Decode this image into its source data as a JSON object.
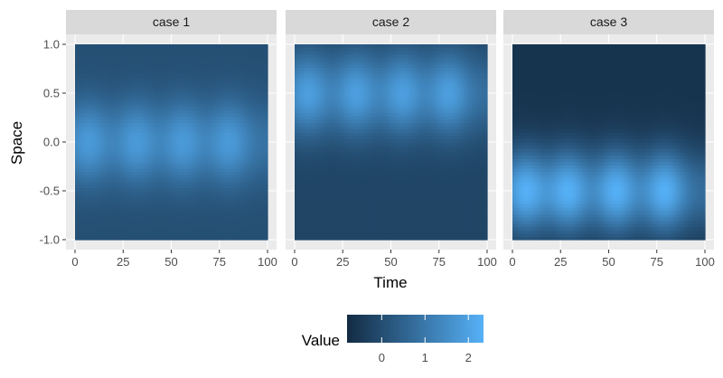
{
  "chart_data": {
    "type": "heatmap",
    "facets": [
      "case 1",
      "case 2",
      "case 3"
    ],
    "xlabel": "Time",
    "ylabel": "Space",
    "xlim": [
      0,
      100
    ],
    "ylim": [
      -1,
      1
    ],
    "x_ticks": [
      0,
      25,
      50,
      75,
      100
    ],
    "x_tick_labels": [
      "0",
      "25",
      "50",
      "75",
      "100"
    ],
    "y_ticks": [
      -1,
      -0.5,
      0,
      0.5,
      1
    ],
    "y_tick_labels": [
      "-1.0",
      "-0.5",
      "0.0",
      "0.5",
      "1.0"
    ],
    "legend": {
      "title": "Value",
      "range": [
        -0.8,
        2.35
      ],
      "breaks": [
        0,
        1,
        2
      ],
      "break_labels": [
        "0",
        "1",
        "2"
      ],
      "low_color": "#132B43",
      "high_color": "#56B1F7",
      "position": "bottom"
    },
    "cases": [
      {
        "name": "case 1",
        "bumps_y": [
          0.0
        ],
        "peak_times": [
          7,
          32,
          56,
          80
        ],
        "base": 0.05,
        "amp": 1.75,
        "sigma_y": 0.3
      },
      {
        "name": "case 2",
        "bumps_y": [
          0.5
        ],
        "peak_times": [
          7,
          32,
          56,
          80
        ],
        "base": -0.2,
        "amp": 2.1,
        "sigma_y": 0.3
      },
      {
        "name": "case 3",
        "bumps_y": [
          -0.5
        ],
        "peak_times": [
          7,
          29,
          54,
          79
        ],
        "base": -0.6,
        "amp": 2.9,
        "sigma_y": 0.3
      }
    ]
  }
}
